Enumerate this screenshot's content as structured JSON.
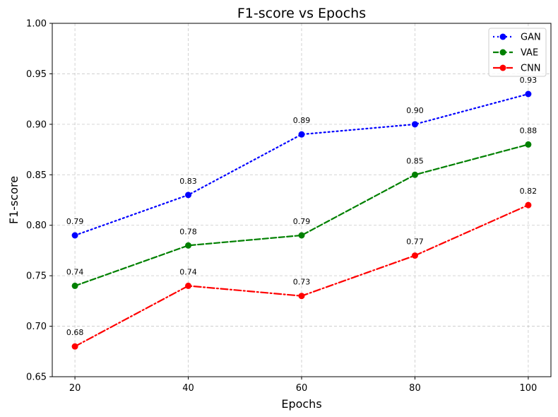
{
  "chart_data": {
    "type": "line",
    "title": "F1-score vs Epochs",
    "xlabel": "Epochs",
    "ylabel": "F1-score",
    "x": [
      20,
      40,
      60,
      80,
      100
    ],
    "x_ticks": [
      "20",
      "40",
      "60",
      "80",
      "100"
    ],
    "y_ticks": [
      "0.65",
      "0.70",
      "0.75",
      "0.80",
      "0.85",
      "0.90",
      "0.95",
      "1.00"
    ],
    "ylim": [
      0.65,
      1.0
    ],
    "grid": true,
    "legend_position": "top-right",
    "series": [
      {
        "name": "GAN",
        "values": [
          0.79,
          0.83,
          0.89,
          0.9,
          0.93
        ],
        "labels": [
          "0.79",
          "0.83",
          "0.89",
          "0.90",
          "0.93"
        ],
        "color": "#0000ff",
        "line_style": "dotted",
        "marker": "circle"
      },
      {
        "name": "VAE",
        "values": [
          0.74,
          0.78,
          0.79,
          0.85,
          0.88
        ],
        "labels": [
          "0.74",
          "0.78",
          "0.79",
          "0.85",
          "0.88"
        ],
        "color": "#008000",
        "line_style": "dashed",
        "marker": "circle"
      },
      {
        "name": "CNN",
        "values": [
          0.68,
          0.74,
          0.73,
          0.77,
          0.82
        ],
        "labels": [
          "0.68",
          "0.74",
          "0.73",
          "0.77",
          "0.82"
        ],
        "color": "#ff0000",
        "line_style": "dash-dot",
        "marker": "circle"
      }
    ]
  }
}
